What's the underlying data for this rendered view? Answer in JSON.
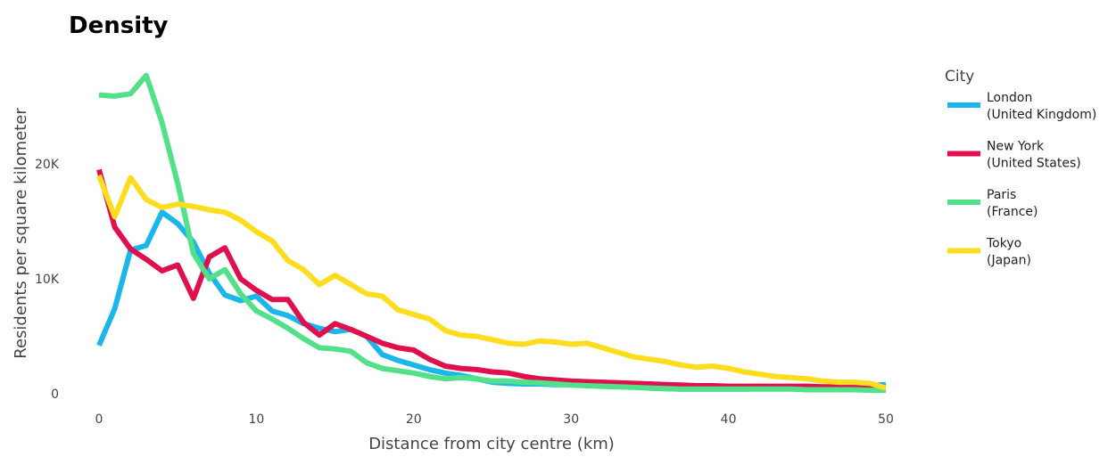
{
  "chart_data": {
    "type": "line",
    "title": "Density",
    "xlabel": "Distance from city centre (km)",
    "ylabel": "Residents per square kilometer",
    "xlim": [
      0,
      50
    ],
    "ylim": [
      0,
      28000
    ],
    "x_ticks": [
      0,
      10,
      20,
      30,
      40,
      50
    ],
    "y_ticks": [
      0,
      10000,
      20000
    ],
    "y_tick_labels": [
      "0",
      "10K",
      "20K"
    ],
    "x_tick_labels": [
      "0",
      "10",
      "20",
      "30",
      "40",
      "50"
    ],
    "grid": false,
    "legend": {
      "title": "City",
      "position": "right"
    },
    "x": [
      0,
      1,
      2,
      3,
      4,
      5,
      6,
      7,
      8,
      9,
      10,
      11,
      12,
      13,
      14,
      15,
      16,
      17,
      18,
      19,
      20,
      21,
      22,
      23,
      24,
      25,
      26,
      27,
      28,
      29,
      30,
      31,
      32,
      33,
      34,
      35,
      36,
      37,
      38,
      39,
      40,
      41,
      42,
      43,
      44,
      45,
      46,
      47,
      48,
      49,
      50
    ],
    "series": [
      {
        "name_line1": "London",
        "name_line2": "(United Kingdom)",
        "color": "#1AB6EC",
        "values": [
          4200,
          7400,
          12500,
          12900,
          15800,
          14800,
          13200,
          10500,
          8600,
          8100,
          8500,
          7200,
          6800,
          6100,
          5700,
          5400,
          5600,
          5000,
          3400,
          2900,
          2500,
          2100,
          1800,
          1600,
          1300,
          1000,
          900,
          850,
          850,
          800,
          800,
          750,
          700,
          650,
          600,
          500,
          450,
          400,
          400,
          400,
          400,
          400,
          450,
          450,
          450,
          450,
          500,
          500,
          600,
          700,
          800
        ]
      },
      {
        "name_line1": "New York",
        "name_line2": "(United States)",
        "color": "#E0104E",
        "values": [
          19500,
          14500,
          12600,
          11700,
          10700,
          11200,
          8300,
          11900,
          12700,
          10000,
          9000,
          8200,
          8200,
          6200,
          5100,
          6100,
          5600,
          5000,
          4400,
          4000,
          3800,
          3000,
          2400,
          2200,
          2100,
          1900,
          1800,
          1500,
          1300,
          1200,
          1100,
          1050,
          1000,
          950,
          900,
          850,
          800,
          750,
          700,
          700,
          650,
          650,
          650,
          650,
          650,
          650,
          600,
          600,
          550,
          500,
          500
        ]
      },
      {
        "name_line1": "Paris",
        "name_line2": "(France)",
        "color": "#52E089",
        "values": [
          26000,
          25900,
          26100,
          27700,
          23600,
          18300,
          12200,
          10000,
          10800,
          8700,
          7200,
          6500,
          5700,
          4800,
          4000,
          3900,
          3700,
          2700,
          2200,
          2000,
          1800,
          1500,
          1300,
          1400,
          1300,
          1100,
          1100,
          1000,
          950,
          850,
          750,
          700,
          650,
          600,
          550,
          500,
          450,
          400,
          400,
          400,
          400,
          400,
          400,
          400,
          400,
          350,
          350,
          350,
          350,
          300,
          300
        ]
      },
      {
        "name_line1": "Tokyo",
        "name_line2": "(Japan)",
        "color": "#FDDD1E",
        "values": [
          19000,
          15400,
          18800,
          16900,
          16200,
          16500,
          16300,
          16000,
          15800,
          15100,
          14100,
          13300,
          11600,
          10800,
          9500,
          10300,
          9500,
          8700,
          8500,
          7300,
          6900,
          6500,
          5500,
          5100,
          5000,
          4700,
          4400,
          4300,
          4600,
          4500,
          4300,
          4400,
          4000,
          3600,
          3200,
          3000,
          2800,
          2500,
          2300,
          2400,
          2200,
          1900,
          1700,
          1500,
          1400,
          1300,
          1100,
          1000,
          1000,
          900,
          500
        ]
      }
    ]
  }
}
